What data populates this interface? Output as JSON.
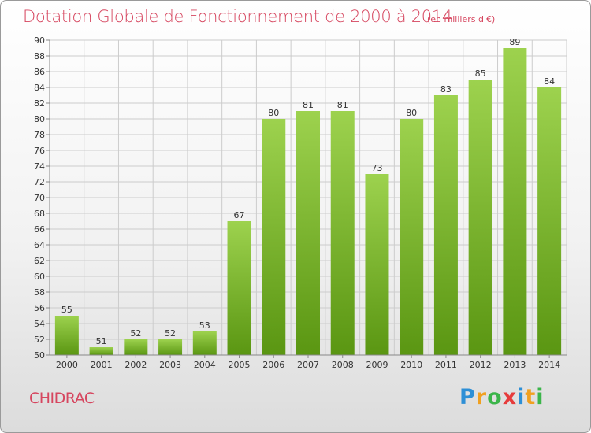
{
  "chart_data": {
    "type": "bar",
    "title": "Dotation Globale de Fonctionnement de 2000 à 2014",
    "subtitle": "(en milliers d'€)",
    "xlabel": "",
    "ylabel": "",
    "categories": [
      "2000",
      "2001",
      "2002",
      "2003",
      "2004",
      "2005",
      "2006",
      "2007",
      "2008",
      "2009",
      "2010",
      "2011",
      "2012",
      "2013",
      "2014"
    ],
    "values": [
      55,
      51,
      52,
      52,
      53,
      67,
      80,
      81,
      81,
      73,
      80,
      83,
      85,
      89,
      84
    ],
    "ylim": [
      50,
      90
    ],
    "yticks": [
      50,
      52,
      54,
      56,
      58,
      60,
      62,
      64,
      66,
      68,
      70,
      72,
      74,
      76,
      78,
      80,
      82,
      84,
      86,
      88,
      90
    ],
    "grid": true,
    "legend": "none",
    "bar_color_top": "#9dd24e",
    "bar_color_bottom": "#5a9612"
  },
  "commune": "CHIDRAC",
  "logo": {
    "letters": [
      "P",
      "r",
      "o",
      "x",
      "i",
      "t",
      "i"
    ],
    "colors": [
      "#2d8fd6",
      "#f0a020",
      "#3bb54a",
      "#e63c3c",
      "#2d8fd6",
      "#f0a020",
      "#3bb54a"
    ]
  },
  "colors": {
    "title": "#d6465f",
    "grid": "#cccccc",
    "axis": "#888888"
  }
}
